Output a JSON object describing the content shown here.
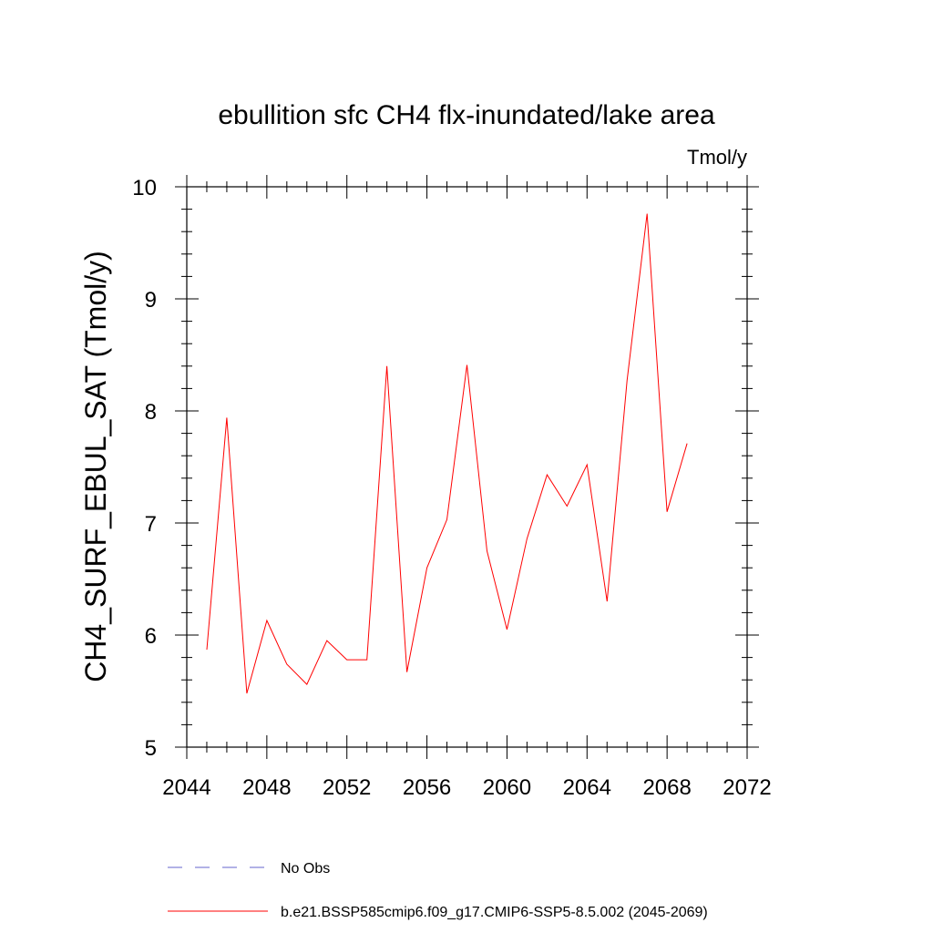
{
  "chart_data": {
    "type": "line",
    "title": "ebullition sfc CH4 flx-inundated/lake area",
    "units": "Tmol/y",
    "ylabel": "CH4_SURF_EBUL_SAT  (Tmol/y)",
    "xlabel": "",
    "xlim": [
      2044,
      2072
    ],
    "ylim": [
      5,
      10
    ],
    "x_ticks": [
      "2044",
      "2048",
      "2052",
      "2056",
      "2060",
      "2064",
      "2068",
      "2072"
    ],
    "y_ticks": [
      "5",
      "6",
      "7",
      "8",
      "9",
      "10"
    ],
    "grid": false,
    "legend_position": "bottom",
    "series": [
      {
        "name": "b.e21.BSSP585cmip6.f09_g17.CMIP6-SSP5-8.5.002 (2045-2069)",
        "color": "#ff0000",
        "x": [
          2045,
          2046,
          2047,
          2048,
          2049,
          2050,
          2051,
          2052,
          2053,
          2054,
          2055,
          2056,
          2057,
          2058,
          2059,
          2060,
          2061,
          2062,
          2063,
          2064,
          2065,
          2066,
          2067,
          2068,
          2069
        ],
        "values": [
          5.87,
          7.94,
          5.48,
          6.13,
          5.74,
          5.56,
          5.95,
          5.78,
          5.78,
          8.4,
          5.67,
          6.6,
          7.03,
          8.41,
          6.75,
          6.05,
          6.86,
          7.43,
          7.15,
          7.52,
          6.3,
          8.27,
          9.76,
          7.1,
          7.71
        ]
      }
    ],
    "legend": [
      {
        "label": "No Obs",
        "color": "#6666cc",
        "style": "dashed"
      },
      {
        "label": "b.e21.BSSP585cmip6.f09_g17.CMIP6-SSP5-8.5.002 (2045-2069)",
        "color": "#ff0000",
        "style": "solid"
      }
    ]
  }
}
